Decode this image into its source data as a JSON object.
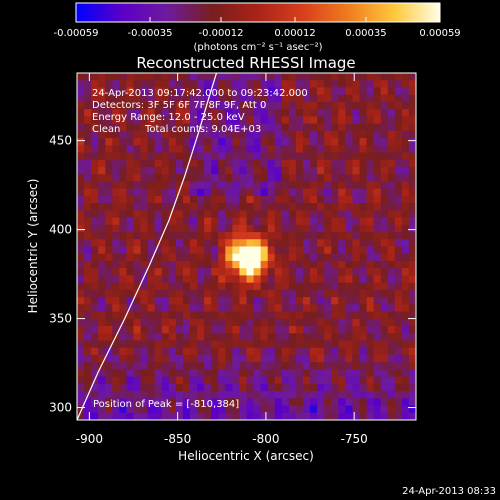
{
  "chart_data": {
    "type": "heatmap",
    "title": "Reconstructed RHESSI Image",
    "xlabel": "Heliocentric X (arcsec)",
    "ylabel": "Heliocentric Y (arcsec)",
    "xlim": [
      -907,
      -715
    ],
    "ylim": [
      293,
      488
    ],
    "x_ticks": [
      -900,
      -850,
      -800,
      -750
    ],
    "x_tick_labels": [
      "-900",
      "-850",
      "-800",
      "-750"
    ],
    "y_ticks": [
      300,
      350,
      400,
      450
    ],
    "y_tick_labels": [
      "300",
      "350",
      "400",
      "450"
    ],
    "colorbar": {
      "range": [
        -0.00059,
        0.00059
      ],
      "ticks": [
        -0.00059,
        -0.00035,
        -0.00012,
        0.00012,
        0.00035,
        0.00059
      ],
      "tick_labels": [
        "-0.00059",
        "-0.00035",
        "-0.00012",
        "0.00012",
        "0.00035",
        "0.00059"
      ],
      "unit_label": "(photons cm⁻² s⁻¹ asec⁻²)"
    },
    "colormap_stops": [
      "#0000ff",
      "#5a00c8",
      "#6e1a9e",
      "#781e1e",
      "#aa2318",
      "#d8401c",
      "#f07d1e",
      "#ffc83c",
      "#ffffe6"
    ],
    "annotations": [
      "24-Apr-2013 09:17:42.000 to 09:23:42.000",
      "Detectors: 3F 5F 6F 7F 8F 9F, Att 0",
      "Energy Range: 12.0 - 25.0 keV",
      "Clean",
      "Total counts: 9.04E+03",
      "Position of Peak = [-810,384]"
    ],
    "peak": {
      "x": -810,
      "y": 384
    },
    "limb_curve": [
      {
        "x": -907,
        "y": 293
      },
      {
        "x": -895,
        "y": 320
      },
      {
        "x": -880,
        "y": 350
      },
      {
        "x": -866,
        "y": 380
      },
      {
        "x": -855,
        "y": 405
      },
      {
        "x": -846,
        "y": 430
      },
      {
        "x": -838,
        "y": 455
      },
      {
        "x": -832,
        "y": 475
      },
      {
        "x": -828,
        "y": 488
      }
    ]
  },
  "footer": {
    "timestamp": "24-Apr-2013 08:33"
  }
}
